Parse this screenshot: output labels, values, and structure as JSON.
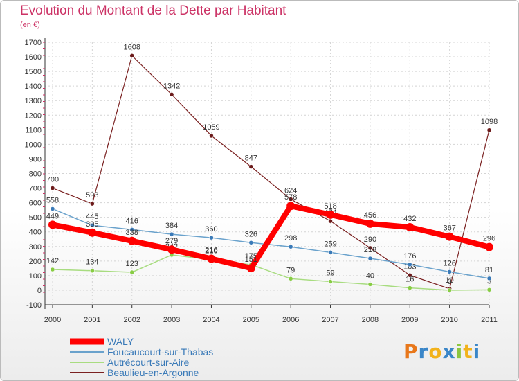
{
  "title": "Evolution du Montant de la Dette par Habitant",
  "subtitle": "(en €)",
  "logo": {
    "text": "Proxiti",
    "colors": [
      "#e8771a",
      "#3a86c8",
      "#f2b21b",
      "#3a86c8",
      "#8cc63f",
      "#f2b21b",
      "#3a86c8"
    ]
  },
  "chart_data": {
    "type": "line",
    "x": [
      "2000",
      "2001",
      "2002",
      "2003",
      "2004",
      "2005",
      "2006",
      "2007",
      "2008",
      "2009",
      "2010",
      "2011"
    ],
    "ylim": [
      -100,
      1700
    ],
    "yticks": [
      -100,
      0,
      100,
      200,
      300,
      400,
      500,
      600,
      700,
      800,
      900,
      1000,
      1100,
      1200,
      1300,
      1400,
      1500,
      1600,
      1700
    ],
    "grid": true,
    "legend": "bottom-left",
    "series": [
      {
        "name": "Beaulieu-en-Argonne",
        "color": "#7a2020",
        "width": 1.2,
        "marker": "#6b1a1a",
        "values": [
          700,
          593,
          1608,
          1342,
          1059,
          847,
          624,
          474,
          290,
          103,
          10,
          1098
        ],
        "labels": [
          "700",
          "593",
          "1608",
          "1342",
          "1059",
          "847",
          "624",
          "474",
          "290",
          "103",
          "10",
          "1098"
        ]
      },
      {
        "name": "Autrécourt-sur-Aire",
        "color": "#a8dc80",
        "width": 1.5,
        "marker": "#88cc44",
        "values": [
          142,
          134,
          123,
          242,
          210,
          175,
          79,
          59,
          40,
          16,
          0,
          3
        ],
        "labels": [
          "142",
          "134",
          "123",
          "242",
          "210",
          "175",
          "79",
          "59",
          "40",
          "16",
          "0",
          "3"
        ]
      },
      {
        "name": "Foucaucourt-sur-Thabas",
        "color": "#6aa2cc",
        "width": 1.5,
        "marker": "#3a7ab8",
        "values": [
          558,
          445,
          416,
          384,
          360,
          326,
          298,
          259,
          218,
          176,
          126,
          81
        ],
        "labels": [
          "558",
          "445",
          "416",
          "384",
          "360",
          "326",
          "298",
          "259",
          "218",
          "176",
          "126",
          "81"
        ]
      },
      {
        "name": "WALY",
        "color": "#ff0000",
        "width": 8,
        "marker": "#ff0000",
        "values": [
          449,
          395,
          338,
          279,
          216,
          151,
          578,
          518,
          456,
          432,
          367,
          296
        ],
        "labels": [
          "449",
          "395",
          "338",
          "279",
          "216",
          "151",
          "578",
          "518",
          "456",
          "432",
          "367",
          "296"
        ]
      }
    ],
    "legend_order": [
      "WALY",
      "Foucaucourt-sur-Thabas",
      "Autrécourt-sur-Aire",
      "Beaulieu-en-Argonne"
    ]
  }
}
